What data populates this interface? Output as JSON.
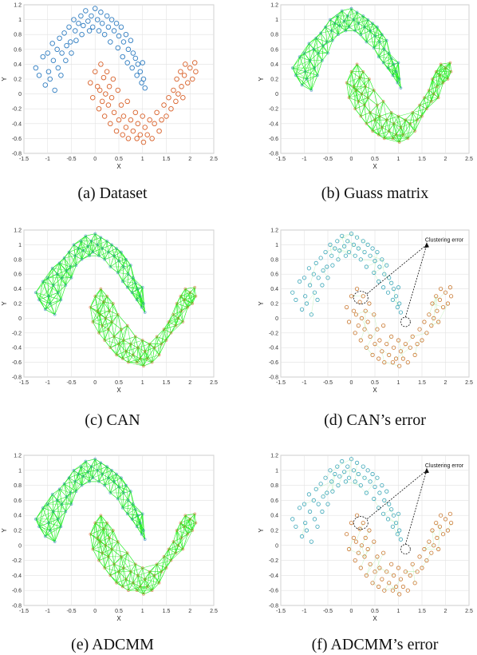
{
  "figure": {
    "panels": [
      {
        "id": "a",
        "caption": "(a)  Dataset",
        "kind": "scatter",
        "plot": "dataset"
      },
      {
        "id": "b",
        "caption": "(b)  Guass matrix",
        "kind": "graph",
        "plot": "graph",
        "seed": 11
      },
      {
        "id": "c",
        "caption": "(c)  CAN",
        "kind": "graph",
        "plot": "graph",
        "seed": 23
      },
      {
        "id": "d",
        "caption": "(d)  CAN’s error",
        "kind": "error",
        "plot": "error",
        "seed": 37,
        "annotation": {
          "text": "Clustering error",
          "circled_points": [
            [
              0.2,
              0.28
            ],
            [
              1.15,
              -0.05
            ]
          ]
        }
      },
      {
        "id": "e",
        "caption": "(e)  ADCMM",
        "kind": "graph",
        "plot": "graph",
        "seed": 41
      },
      {
        "id": "f",
        "caption": "(f)  ADCMM’s error",
        "kind": "error",
        "plot": "error",
        "seed": 53,
        "annotation": {
          "text": "Clustering error",
          "circled_points": [
            [
              0.2,
              0.3
            ],
            [
              1.15,
              -0.05
            ]
          ]
        }
      }
    ]
  },
  "chart_data": {
    "type": "scatter",
    "xlabel": "X",
    "ylabel": "Y",
    "xlim": [
      -1.5,
      2.5
    ],
    "ylim": [
      -0.8,
      1.2
    ],
    "xticks": [
      "-1.5",
      "-1",
      "-0.5",
      "0",
      "0.5",
      "1",
      "1.5",
      "2",
      "2.5"
    ],
    "yticks": [
      "1.2",
      "1",
      "0.8",
      "0.6",
      "0.4",
      "0.2",
      "0",
      "-0.2",
      "-0.4",
      "-0.6",
      "-0.8"
    ],
    "grid": true,
    "series": [
      {
        "color": "#2f7dc1",
        "points": [
          [
            -1.25,
            0.35
          ],
          [
            -1.18,
            0.25
          ],
          [
            -1.1,
            0.5
          ],
          [
            -1.05,
            0.12
          ],
          [
            -1.0,
            0.55
          ],
          [
            -0.98,
            0.3
          ],
          [
            -0.95,
            0.2
          ],
          [
            -0.9,
            0.68
          ],
          [
            -0.88,
            0.45
          ],
          [
            -0.85,
            0.05
          ],
          [
            -0.8,
            0.6
          ],
          [
            -0.78,
            0.35
          ],
          [
            -0.75,
            0.75
          ],
          [
            -0.72,
            0.25
          ],
          [
            -0.7,
            0.55
          ],
          [
            -0.65,
            0.82
          ],
          [
            -0.62,
            0.45
          ],
          [
            -0.6,
            0.65
          ],
          [
            -0.55,
            0.9
          ],
          [
            -0.52,
            0.7
          ],
          [
            -0.5,
            0.55
          ],
          [
            -0.45,
            1.0
          ],
          [
            -0.42,
            0.85
          ],
          [
            -0.4,
            0.72
          ],
          [
            -0.35,
            0.95
          ],
          [
            -0.3,
            1.05
          ],
          [
            -0.28,
            0.8
          ],
          [
            -0.25,
            0.92
          ],
          [
            -0.2,
            1.12
          ],
          [
            -0.15,
            0.98
          ],
          [
            -0.12,
            0.85
          ],
          [
            -0.08,
            1.05
          ],
          [
            -0.05,
            0.9
          ],
          [
            0.0,
            1.15
          ],
          [
            0.05,
            1.0
          ],
          [
            0.08,
            0.85
          ],
          [
            0.12,
            1.1
          ],
          [
            0.15,
            0.95
          ],
          [
            0.2,
            0.8
          ],
          [
            0.25,
            1.05
          ],
          [
            0.28,
            0.9
          ],
          [
            0.32,
            0.7
          ],
          [
            0.35,
            1.0
          ],
          [
            0.4,
            0.85
          ],
          [
            0.45,
            0.95
          ],
          [
            0.48,
            0.62
          ],
          [
            0.5,
            0.78
          ],
          [
            0.55,
            0.9
          ],
          [
            0.58,
            0.5
          ],
          [
            0.6,
            0.7
          ],
          [
            0.65,
            0.8
          ],
          [
            0.68,
            0.42
          ],
          [
            0.7,
            0.6
          ],
          [
            0.75,
            0.72
          ],
          [
            0.78,
            0.35
          ],
          [
            0.8,
            0.55
          ],
          [
            0.85,
            0.48
          ],
          [
            0.88,
            0.25
          ],
          [
            0.9,
            0.4
          ],
          [
            0.95,
            0.3
          ],
          [
            0.98,
            0.15
          ],
          [
            1.0,
            0.42
          ],
          [
            1.02,
            0.2
          ],
          [
            1.05,
            0.08
          ]
        ]
      },
      {
        "color": "#d9622b",
        "points": [
          [
            -0.1,
            0.15
          ],
          [
            -0.05,
            -0.05
          ],
          [
            0.0,
            0.3
          ],
          [
            0.05,
            0.1
          ],
          [
            0.08,
            -0.2
          ],
          [
            0.1,
            0.05
          ],
          [
            0.12,
            0.4
          ],
          [
            0.15,
            -0.1
          ],
          [
            0.18,
            0.22
          ],
          [
            0.2,
            -0.3
          ],
          [
            0.22,
            0.0
          ],
          [
            0.25,
            0.3
          ],
          [
            0.28,
            -0.15
          ],
          [
            0.3,
            0.1
          ],
          [
            0.32,
            -0.4
          ],
          [
            0.35,
            -0.05
          ],
          [
            0.38,
            0.2
          ],
          [
            0.4,
            -0.25
          ],
          [
            0.45,
            -0.5
          ],
          [
            0.48,
            0.05
          ],
          [
            0.5,
            -0.35
          ],
          [
            0.55,
            -0.15
          ],
          [
            0.58,
            -0.55
          ],
          [
            0.6,
            -0.3
          ],
          [
            0.65,
            -0.45
          ],
          [
            0.68,
            -0.1
          ],
          [
            0.7,
            -0.6
          ],
          [
            0.75,
            -0.35
          ],
          [
            0.8,
            -0.5
          ],
          [
            0.85,
            -0.25
          ],
          [
            0.88,
            -0.6
          ],
          [
            0.9,
            -0.4
          ],
          [
            0.95,
            -0.55
          ],
          [
            1.0,
            -0.3
          ],
          [
            1.02,
            -0.65
          ],
          [
            1.05,
            -0.45
          ],
          [
            1.1,
            -0.55
          ],
          [
            1.15,
            -0.35
          ],
          [
            1.2,
            -0.6
          ],
          [
            1.25,
            -0.4
          ],
          [
            1.3,
            -0.25
          ],
          [
            1.35,
            -0.5
          ],
          [
            1.4,
            -0.35
          ],
          [
            1.45,
            -0.15
          ],
          [
            1.5,
            -0.3
          ],
          [
            1.55,
            -0.05
          ],
          [
            1.6,
            -0.2
          ],
          [
            1.65,
            0.05
          ],
          [
            1.7,
            -0.1
          ],
          [
            1.72,
            0.2
          ],
          [
            1.75,
            0.0
          ],
          [
            1.8,
            0.3
          ],
          [
            1.82,
            0.1
          ],
          [
            1.85,
            -0.05
          ],
          [
            1.88,
            0.25
          ],
          [
            1.9,
            0.4
          ],
          [
            1.95,
            0.15
          ],
          [
            2.0,
            0.35
          ],
          [
            2.05,
            0.2
          ],
          [
            2.1,
            0.42
          ],
          [
            2.12,
            0.3
          ]
        ]
      }
    ]
  }
}
